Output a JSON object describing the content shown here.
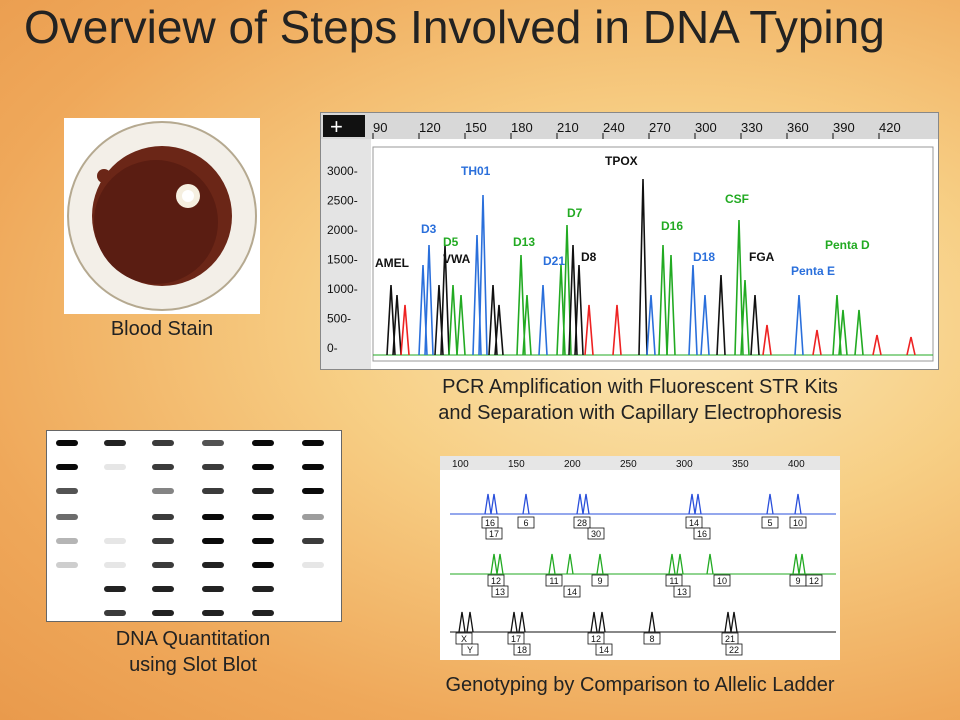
{
  "slide": {
    "title": "Overview of Steps Involved in DNA Typing",
    "blood_caption": "Blood Stain",
    "pcr_caption_line1": "PCR Amplification with Fluorescent STR Kits",
    "pcr_caption_line2": "and Separation with Capillary Electrophoresis",
    "slot_caption_line1": "DNA Quantitation",
    "slot_caption_line2": "using Slot Blot",
    "genotype_caption": "Genotyping by Comparison to Allelic Ladder"
  },
  "electropherogram": {
    "x_ticks": [
      "90",
      "120",
      "150",
      "180",
      "210",
      "240",
      "270",
      "300",
      "330",
      "360",
      "390",
      "420"
    ],
    "y_ticks": [
      "3000-",
      "2500-",
      "2000-",
      "1500-",
      "1000-",
      "500-",
      "0-"
    ],
    "loci": [
      {
        "name": "AMEL",
        "color": "#111111"
      },
      {
        "name": "D3",
        "color": "#2a6fdb"
      },
      {
        "name": "TH01",
        "color": "#2a6fdb"
      },
      {
        "name": "D5",
        "color": "#22aa22"
      },
      {
        "name": "VWA",
        "color": "#111111"
      },
      {
        "name": "D13",
        "color": "#22aa22"
      },
      {
        "name": "D21",
        "color": "#2a6fdb"
      },
      {
        "name": "D7",
        "color": "#22aa22"
      },
      {
        "name": "D8",
        "color": "#111111"
      },
      {
        "name": "TPOX",
        "color": "#111111"
      },
      {
        "name": "D16",
        "color": "#22aa22"
      },
      {
        "name": "D18",
        "color": "#2a6fdb"
      },
      {
        "name": "CSF",
        "color": "#22aa22"
      },
      {
        "name": "FGA",
        "color": "#111111"
      },
      {
        "name": "Penta D",
        "color": "#22aa22"
      },
      {
        "name": "Penta E",
        "color": "#2a6fdb"
      }
    ]
  },
  "genotype": {
    "x_ticks": [
      "100",
      "150",
      "200",
      "250",
      "300",
      "350",
      "400"
    ],
    "row1_top": [
      "16",
      "6",
      "28",
      "14",
      "5",
      "10"
    ],
    "row1_bottom": [
      "17",
      "30",
      "16"
    ],
    "row2_top": [
      "12",
      "11",
      "9",
      "11",
      "10",
      "9",
      "12"
    ],
    "row2_bottom": [
      "13",
      "14",
      "13"
    ],
    "row3_top": [
      "X",
      "17",
      "12",
      "8",
      "21"
    ],
    "row3_bottom": [
      "Y",
      "18",
      "14",
      "22"
    ]
  }
}
